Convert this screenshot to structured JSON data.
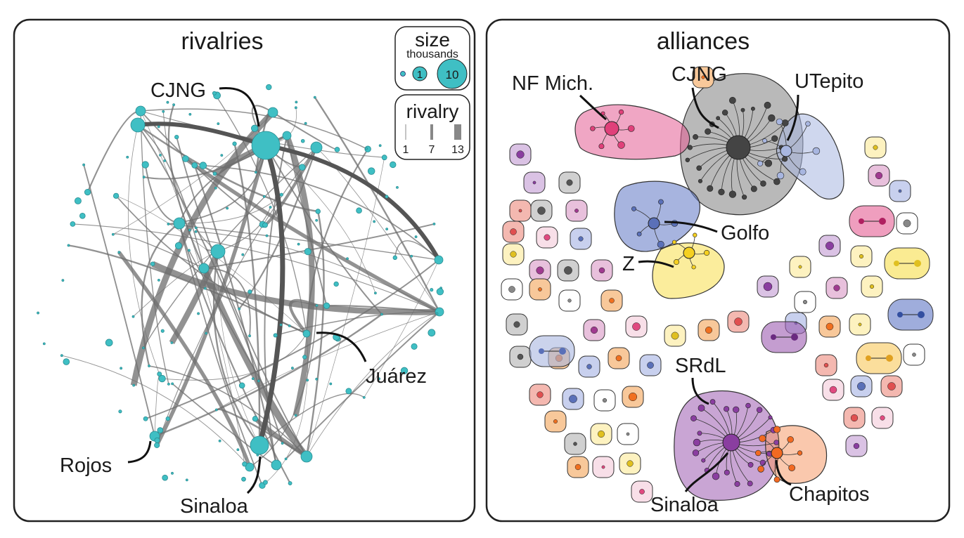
{
  "panels": {
    "left": {
      "title": "rivalries",
      "labels": {
        "cjng": "CJNG",
        "juarez": "Juárez",
        "rojos": "Rojos",
        "sinaloa": "Sinaloa"
      },
      "legend_size": {
        "title": "size",
        "subtitle": "thousands",
        "values": [
          "1",
          "10"
        ]
      },
      "legend_rivalry": {
        "title": "rivalry",
        "values": [
          "1",
          "7",
          "13"
        ]
      }
    },
    "right": {
      "title": "alliances",
      "labels": {
        "nf": "NF Mich.",
        "cjng": "CJNG",
        "utepito": "UTepito",
        "golfo": "Golfo",
        "z": "Z",
        "srdl": "SRdL",
        "sinaloa": "Sinaloa",
        "chapitos": "Chapitos"
      }
    }
  },
  "colors": {
    "node": "#3fbfc4",
    "edge": "#6e6e6e",
    "pink": "#e0407a",
    "gray": "#555555",
    "blue": "#5a70b8",
    "yellow": "#f5d020",
    "purple": "#8a3ea0",
    "orange": "#f26a22"
  }
}
